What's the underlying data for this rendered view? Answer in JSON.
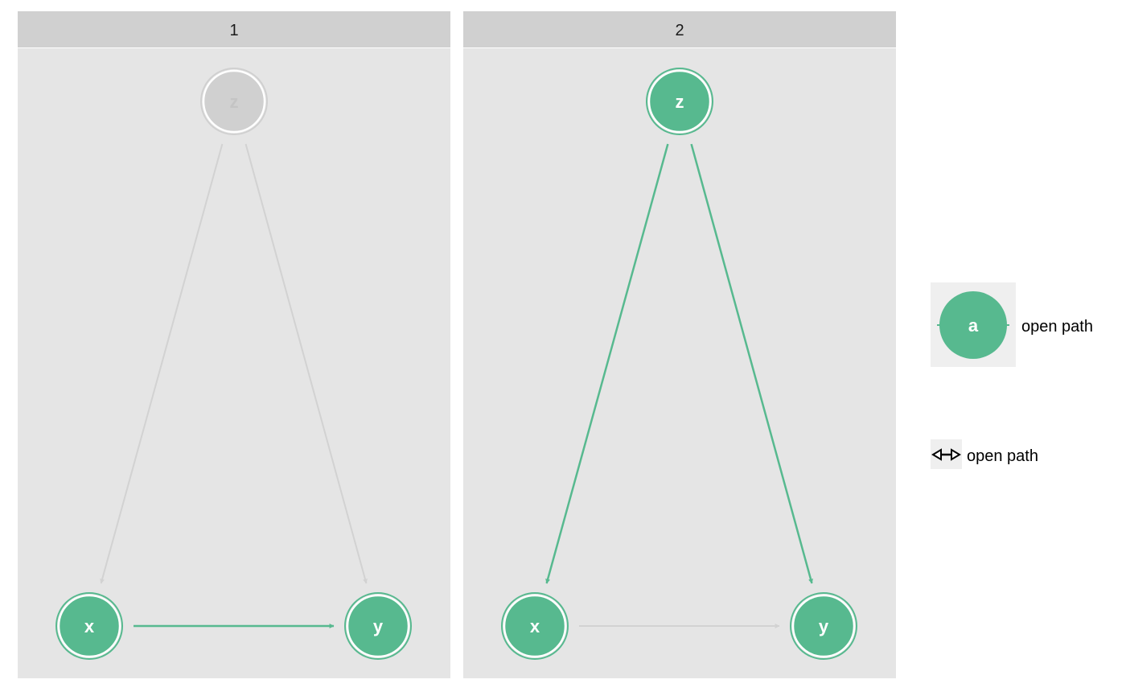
{
  "colors": {
    "open": "#57b98f",
    "faded_node": "#d0d0d0",
    "faded_edge": "#d2d2d2",
    "panel_bg": "#e5e5e5",
    "strip_bg": "#d0d0d0",
    "node_text": "#ffffff"
  },
  "panels": [
    {
      "id": "1",
      "label": "1",
      "nodes": [
        {
          "name": "z",
          "label": "z",
          "state": "faded"
        },
        {
          "name": "x",
          "label": "x",
          "state": "open"
        },
        {
          "name": "y",
          "label": "y",
          "state": "open"
        }
      ],
      "edges": [
        {
          "from": "z",
          "to": "x",
          "state": "faded"
        },
        {
          "from": "z",
          "to": "y",
          "state": "faded"
        },
        {
          "from": "x",
          "to": "y",
          "state": "open"
        }
      ]
    },
    {
      "id": "2",
      "label": "2",
      "nodes": [
        {
          "name": "z",
          "label": "z",
          "state": "open"
        },
        {
          "name": "x",
          "label": "x",
          "state": "open"
        },
        {
          "name": "y",
          "label": "y",
          "state": "open"
        }
      ],
      "edges": [
        {
          "from": "z",
          "to": "x",
          "state": "open"
        },
        {
          "from": "z",
          "to": "y",
          "state": "open"
        },
        {
          "from": "x",
          "to": "y",
          "state": "faded"
        }
      ]
    }
  ],
  "legend": {
    "node_key": {
      "label": "a",
      "text": "open path"
    },
    "edge_key": {
      "icon": "double-arrow-icon",
      "text": "open path"
    }
  }
}
